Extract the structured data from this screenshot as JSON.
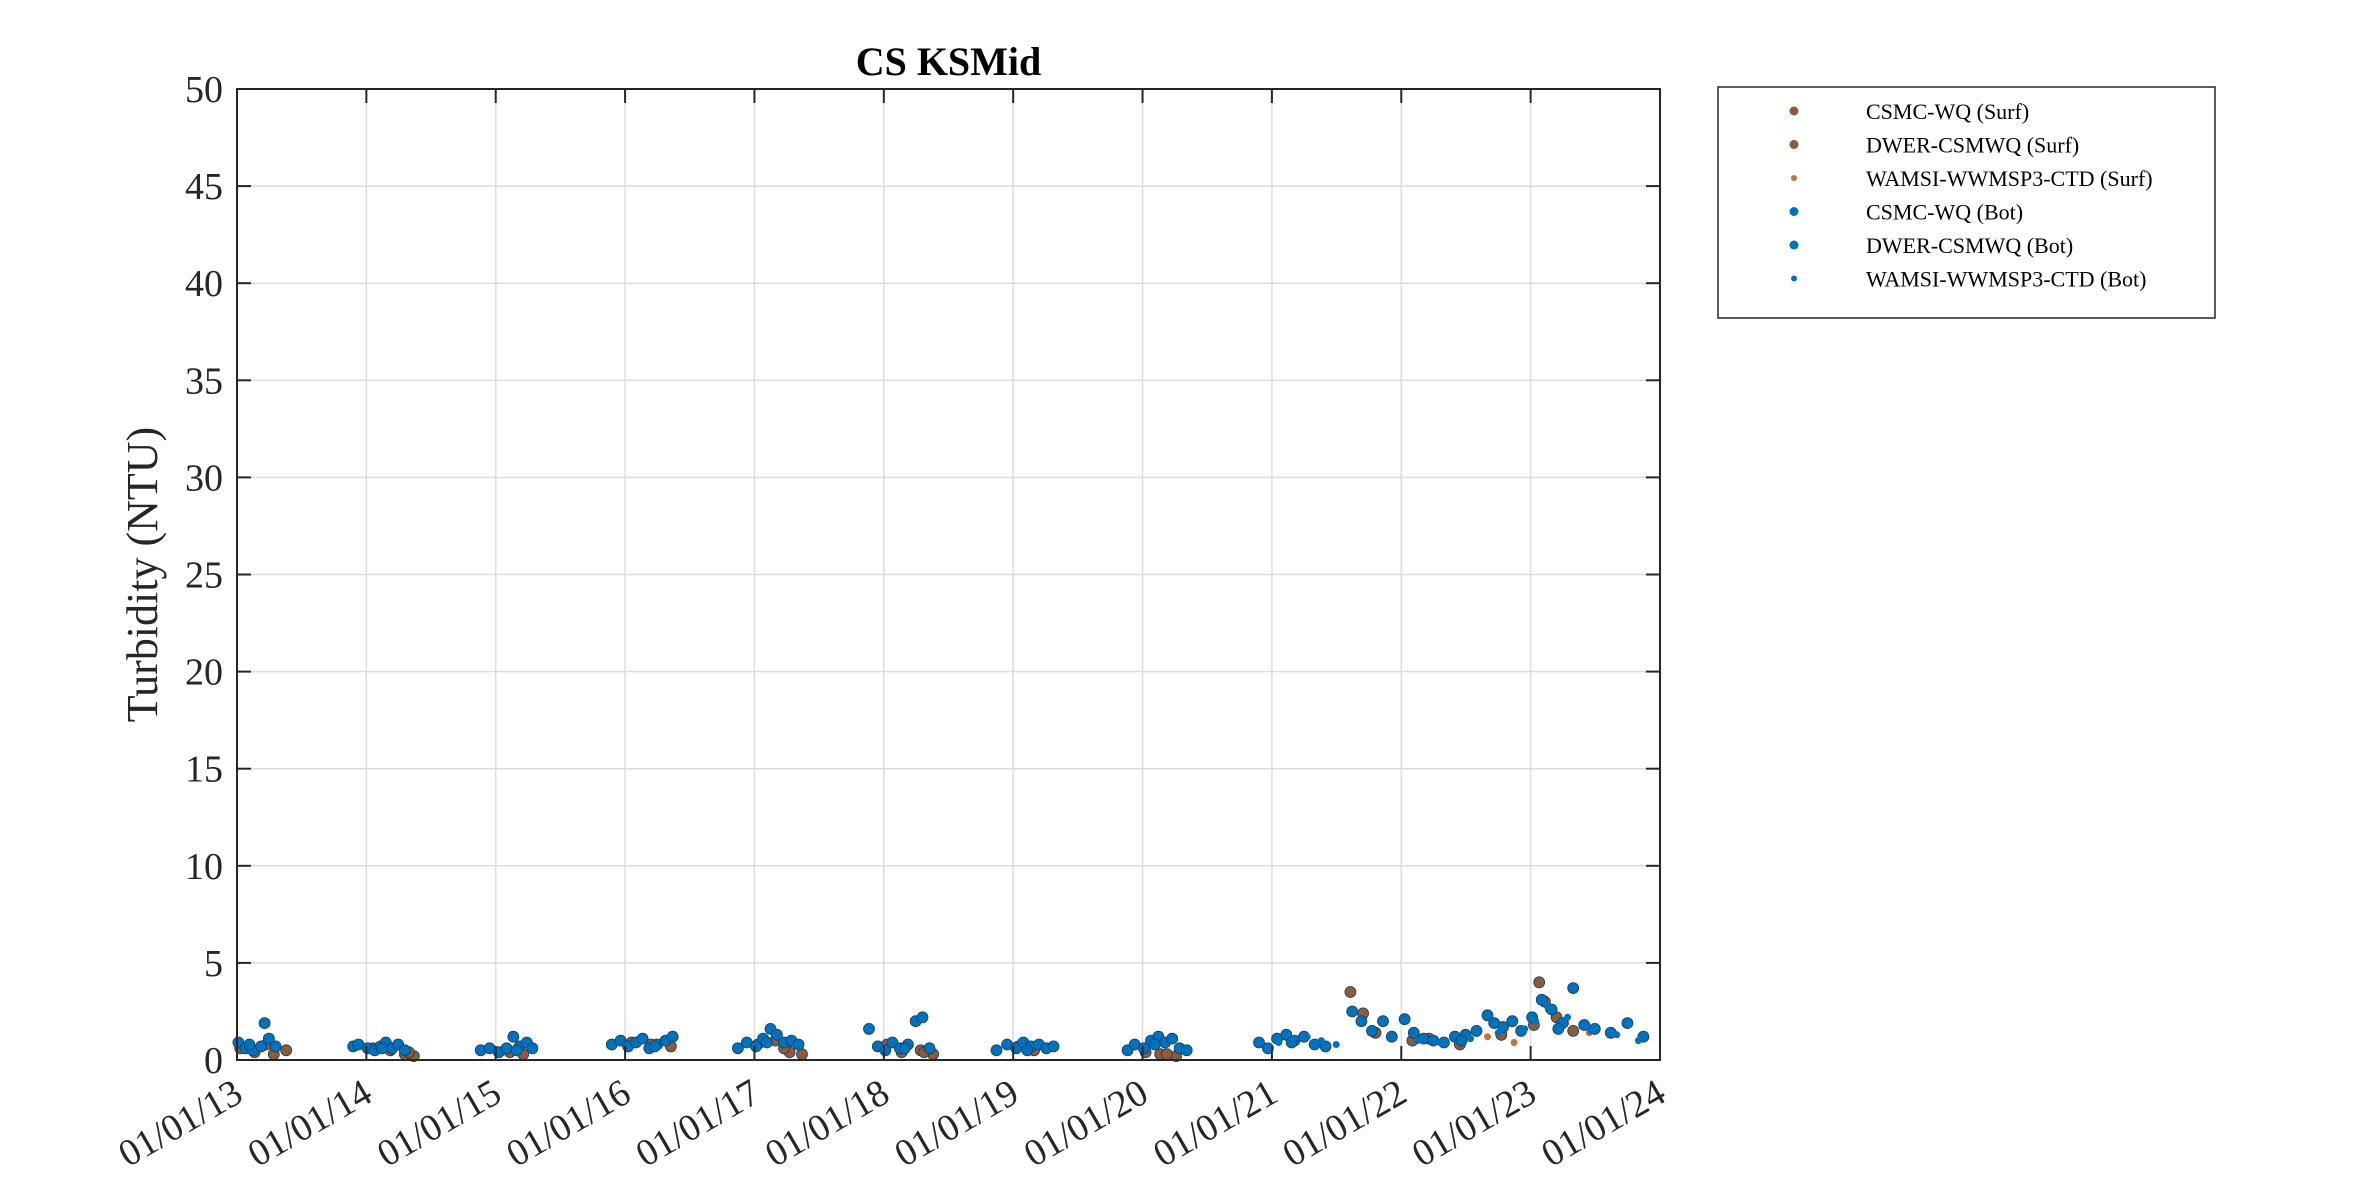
{
  "chart_data": {
    "type": "scatter",
    "title": "CS KSMid",
    "xlabel": "",
    "ylabel": "Turbidity (NTU)",
    "ylim": [
      0,
      50
    ],
    "yticks": [
      "0",
      "5",
      "10",
      "15",
      "20",
      "25",
      "30",
      "35",
      "40",
      "45",
      "50"
    ],
    "xlim": [
      "2013-01-01",
      "2024-01-01"
    ],
    "xticks": [
      "01/01/13",
      "01/01/14",
      "01/01/15",
      "01/01/16",
      "01/01/17",
      "01/01/18",
      "01/01/19",
      "01/01/20",
      "01/01/21",
      "01/01/22",
      "01/01/23",
      "01/01/24"
    ],
    "grid": true,
    "legend_position": "outside-top-right",
    "colors": {
      "surf": "#8c5a3c",
      "surf_light": "#c8713c",
      "bot": "#0072bd",
      "axis": "#262626",
      "grid": "#dcdcdc"
    },
    "series": [
      {
        "name": "CSMC-WQ (Surf)",
        "group": "surf",
        "marker_style": "filled-circle",
        "points": [
          [
            "2013-01-10",
            0.6
          ],
          [
            "2013-02-20",
            0.4
          ],
          [
            "2013-03-25",
            0.8
          ],
          [
            "2013-04-15",
            0.3
          ],
          [
            "2014-01-20",
            0.6
          ],
          [
            "2014-03-10",
            0.5
          ],
          [
            "2014-04-20",
            0.3
          ],
          [
            "2014-05-15",
            0.2
          ],
          [
            "2015-02-10",
            0.4
          ],
          [
            "2015-03-20",
            0.3
          ],
          [
            "2016-01-20",
            0.9
          ],
          [
            "2016-03-15",
            0.8
          ],
          [
            "2016-05-10",
            0.7
          ],
          [
            "2017-01-10",
            0.8
          ],
          [
            "2017-03-01",
            1.0
          ],
          [
            "2017-04-10",
            0.4
          ],
          [
            "2017-05-15",
            0.3
          ],
          [
            "2018-01-10",
            0.8
          ],
          [
            "2018-02-20",
            0.4
          ],
          [
            "2018-04-15",
            0.5
          ],
          [
            "2018-05-20",
            0.3
          ],
          [
            "2019-01-15",
            0.7
          ],
          [
            "2019-03-01",
            0.5
          ],
          [
            "2020-01-10",
            0.4
          ],
          [
            "2020-02-20",
            0.3
          ],
          [
            "2020-04-05",
            0.2
          ],
          [
            "2021-08-10",
            3.5
          ],
          [
            "2021-09-15",
            2.4
          ],
          [
            "2021-10-20",
            1.4
          ],
          [
            "2022-03-20",
            1.1
          ],
          [
            "2022-06-15",
            0.8
          ],
          [
            "2022-10-10",
            1.3
          ],
          [
            "2023-01-25",
            4.0
          ],
          [
            "2023-02-10",
            3.0
          ],
          [
            "2023-03-15",
            2.2
          ],
          [
            "2023-05-01",
            1.5
          ]
        ]
      },
      {
        "name": "DWER-CSMWQ (Surf)",
        "group": "surf",
        "marker_style": "filled-circle",
        "points": [
          [
            "2013-05-20",
            0.5
          ],
          [
            "2014-05-01",
            0.4
          ],
          [
            "2017-03-25",
            0.6
          ],
          [
            "2018-04-25",
            0.4
          ],
          [
            "2020-03-10",
            0.3
          ],
          [
            "2022-02-01",
            1.0
          ],
          [
            "2023-01-10",
            1.8
          ]
        ]
      },
      {
        "name": "WAMSI-WWMSP3-CTD (Surf)",
        "group": "surf_light",
        "marker_style": "small-dot",
        "points": [
          [
            "2022-09-01",
            1.2
          ],
          [
            "2022-11-15",
            0.9
          ],
          [
            "2023-02-20",
            2.6
          ],
          [
            "2023-04-10",
            1.9
          ],
          [
            "2023-06-15",
            1.4
          ]
        ]
      },
      {
        "name": "CSMC-WQ (Bot)",
        "group": "bot",
        "marker_style": "filled-circle",
        "points": [
          [
            "2013-01-05",
            0.9
          ],
          [
            "2013-01-25",
            0.6
          ],
          [
            "2013-02-15",
            0.5
          ],
          [
            "2013-03-10",
            0.7
          ],
          [
            "2013-03-20",
            1.9
          ],
          [
            "2013-04-01",
            1.1
          ],
          [
            "2013-04-20",
            0.7
          ],
          [
            "2013-11-25",
            0.7
          ],
          [
            "2013-12-10",
            0.8
          ],
          [
            "2014-01-05",
            0.6
          ],
          [
            "2014-01-25",
            0.5
          ],
          [
            "2014-02-10",
            0.7
          ],
          [
            "2014-02-25",
            0.9
          ],
          [
            "2014-03-15",
            0.6
          ],
          [
            "2014-04-01",
            0.8
          ],
          [
            "2014-04-20",
            0.5
          ],
          [
            "2014-11-20",
            0.5
          ],
          [
            "2014-12-15",
            0.6
          ],
          [
            "2015-01-10",
            0.4
          ],
          [
            "2015-02-01",
            0.6
          ],
          [
            "2015-02-20",
            1.2
          ],
          [
            "2015-03-10",
            0.7
          ],
          [
            "2015-03-30",
            0.9
          ],
          [
            "2015-04-15",
            0.6
          ],
          [
            "2015-11-25",
            0.8
          ],
          [
            "2015-12-20",
            1.0
          ],
          [
            "2016-01-10",
            0.7
          ],
          [
            "2016-02-01",
            0.9
          ],
          [
            "2016-02-20",
            1.1
          ],
          [
            "2016-03-10",
            0.6
          ],
          [
            "2016-04-01",
            0.8
          ],
          [
            "2016-04-25",
            1.0
          ],
          [
            "2016-05-15",
            1.2
          ],
          [
            "2016-11-15",
            0.6
          ],
          [
            "2016-12-10",
            0.9
          ],
          [
            "2017-01-05",
            0.7
          ],
          [
            "2017-01-25",
            1.1
          ],
          [
            "2017-02-15",
            1.6
          ],
          [
            "2017-03-05",
            1.3
          ],
          [
            "2017-03-25",
            0.9
          ],
          [
            "2017-04-15",
            1.0
          ],
          [
            "2017-05-05",
            0.8
          ],
          [
            "2017-11-20",
            1.6
          ],
          [
            "2017-12-15",
            0.7
          ],
          [
            "2018-01-05",
            0.5
          ],
          [
            "2018-01-25",
            0.9
          ],
          [
            "2018-02-15",
            0.6
          ],
          [
            "2018-03-10",
            0.8
          ],
          [
            "2018-04-01",
            2.0
          ],
          [
            "2018-04-20",
            2.2
          ],
          [
            "2018-05-10",
            0.6
          ],
          [
            "2018-11-15",
            0.5
          ],
          [
            "2018-12-15",
            0.8
          ],
          [
            "2019-01-10",
            0.6
          ],
          [
            "2019-01-30",
            0.9
          ],
          [
            "2019-02-20",
            0.7
          ],
          [
            "2019-03-15",
            0.8
          ],
          [
            "2019-04-05",
            0.6
          ],
          [
            "2019-04-25",
            0.7
          ],
          [
            "2019-11-20",
            0.5
          ],
          [
            "2019-12-10",
            0.8
          ],
          [
            "2020-01-05",
            0.6
          ],
          [
            "2020-01-25",
            1.0
          ],
          [
            "2020-02-15",
            1.2
          ],
          [
            "2020-03-05",
            0.9
          ],
          [
            "2020-03-25",
            1.1
          ],
          [
            "2020-04-15",
            0.6
          ],
          [
            "2020-05-05",
            0.5
          ],
          [
            "2020-11-25",
            0.9
          ],
          [
            "2020-12-20",
            0.6
          ],
          [
            "2021-01-15",
            1.1
          ],
          [
            "2021-02-10",
            1.3
          ],
          [
            "2021-03-05",
            1.0
          ],
          [
            "2021-04-01",
            1.2
          ],
          [
            "2021-05-01",
            0.8
          ],
          [
            "2021-06-01",
            0.7
          ],
          [
            "2021-08-15",
            2.5
          ],
          [
            "2021-09-10",
            2.0
          ],
          [
            "2021-10-10",
            1.5
          ],
          [
            "2021-11-10",
            2.0
          ],
          [
            "2021-12-05",
            1.2
          ],
          [
            "2022-01-10",
            2.1
          ],
          [
            "2022-02-05",
            1.4
          ],
          [
            "2022-03-05",
            1.1
          ],
          [
            "2022-04-01",
            1.0
          ],
          [
            "2022-05-01",
            0.9
          ],
          [
            "2022-06-01",
            1.2
          ],
          [
            "2022-07-01",
            1.3
          ],
          [
            "2022-08-01",
            1.5
          ],
          [
            "2022-09-01",
            2.3
          ],
          [
            "2022-09-20",
            1.9
          ],
          [
            "2022-10-15",
            1.7
          ],
          [
            "2022-11-10",
            2.0
          ],
          [
            "2022-12-05",
            1.5
          ],
          [
            "2023-01-05",
            2.2
          ],
          [
            "2023-02-01",
            3.1
          ],
          [
            "2023-03-01",
            2.6
          ],
          [
            "2023-04-01",
            1.9
          ],
          [
            "2023-05-01",
            3.7
          ],
          [
            "2023-06-01",
            1.8
          ],
          [
            "2023-07-01",
            1.6
          ],
          [
            "2023-08-15",
            1.4
          ],
          [
            "2023-10-01",
            1.9
          ],
          [
            "2023-11-15",
            1.2
          ]
        ]
      },
      {
        "name": "DWER-CSMWQ (Bot)",
        "group": "bot",
        "marker_style": "filled-circle",
        "points": [
          [
            "2013-02-05",
            0.8
          ],
          [
            "2014-02-15",
            0.6
          ],
          [
            "2015-03-01",
            0.5
          ],
          [
            "2016-03-25",
            0.7
          ],
          [
            "2017-02-05",
            0.9
          ],
          [
            "2018-03-01",
            0.6
          ],
          [
            "2019-02-10",
            0.5
          ],
          [
            "2020-02-05",
            0.8
          ],
          [
            "2021-02-25",
            0.9
          ],
          [
            "2022-06-20",
            1.0
          ],
          [
            "2023-03-20",
            1.6
          ]
        ]
      },
      {
        "name": "WAMSI-WWMSP3-CTD (Bot)",
        "group": "bot",
        "marker_style": "small-dot",
        "points": [
          [
            "2021-01-20",
            0.9
          ],
          [
            "2021-03-01",
            1.1
          ],
          [
            "2021-04-10",
            1.2
          ],
          [
            "2021-05-20",
            1.0
          ],
          [
            "2021-07-01",
            0.8
          ],
          [
            "2022-02-15",
            1.0
          ],
          [
            "2022-04-20",
            0.9
          ],
          [
            "2022-07-15",
            1.1
          ],
          [
            "2022-10-01",
            1.4
          ],
          [
            "2022-12-15",
            1.6
          ],
          [
            "2023-01-15",
            2.0
          ],
          [
            "2023-02-15",
            2.8
          ],
          [
            "2023-04-15",
            2.2
          ],
          [
            "2023-06-20",
            1.5
          ],
          [
            "2023-09-01",
            1.3
          ],
          [
            "2023-11-01",
            1.0
          ]
        ]
      }
    ]
  }
}
